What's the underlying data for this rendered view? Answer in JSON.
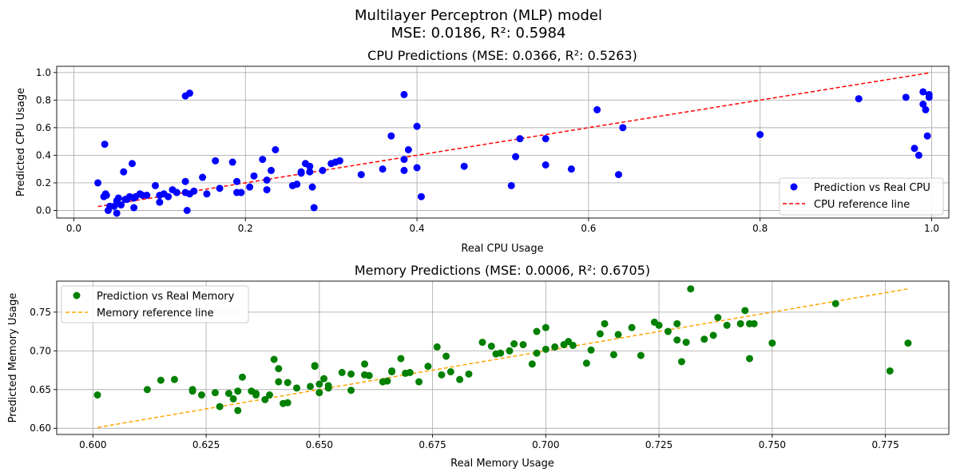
{
  "figure": {
    "suptitle_line1": "Multilayer Perceptron (MLP) model",
    "suptitle_line2": "MSE: 0.0186, R²: 0.5984"
  },
  "chart_data": [
    {
      "type": "scatter",
      "title": "CPU Predictions (MSE: 0.0366, R²: 0.5263)",
      "xlabel": "Real CPU Usage",
      "ylabel": "Predicted CPU Usage",
      "xlim": [
        -0.02,
        1.02
      ],
      "ylim": [
        -0.055,
        1.045
      ],
      "xticks": [
        0.0,
        0.2,
        0.4,
        0.6,
        0.8,
        1.0
      ],
      "xtick_labels": [
        "0.0",
        "0.2",
        "0.4",
        "0.6",
        "0.8",
        "1.0"
      ],
      "yticks": [
        0.0,
        0.2,
        0.4,
        0.6,
        0.8,
        1.0
      ],
      "ytick_labels": [
        "0.0",
        "0.2",
        "0.4",
        "0.6",
        "0.8",
        "1.0"
      ],
      "grid": true,
      "legend_position": "lower-right",
      "scatter_series": {
        "name": "Prediction vs Real CPU",
        "color": "#0000ff",
        "x": [
          0.028,
          0.035,
          0.036,
          0.037,
          0.04,
          0.042,
          0.047,
          0.05,
          0.052,
          0.055,
          0.058,
          0.062,
          0.065,
          0.068,
          0.07,
          0.072,
          0.077,
          0.085,
          0.095,
          0.1,
          0.105,
          0.11,
          0.115,
          0.13,
          0.132,
          0.135,
          0.14,
          0.15,
          0.155,
          0.165,
          0.17,
          0.185,
          0.19,
          0.195,
          0.205,
          0.21,
          0.22,
          0.225,
          0.23,
          0.235,
          0.255,
          0.26,
          0.265,
          0.27,
          0.275,
          0.28,
          0.29,
          0.3,
          0.305,
          0.31,
          0.335,
          0.36,
          0.37,
          0.385,
          0.39,
          0.4,
          0.405,
          0.455,
          0.51,
          0.52,
          0.55,
          0.58,
          0.61,
          0.635,
          0.64,
          0.8,
          0.915,
          0.97,
          0.98,
          0.985,
          0.99,
          0.993,
          0.995,
          0.997,
          0.997,
          0.038,
          0.05,
          0.06,
          0.07,
          0.08,
          0.1,
          0.12,
          0.13,
          0.13,
          0.135,
          0.19,
          0.225,
          0.265,
          0.275,
          0.278,
          0.385,
          0.385,
          0.4,
          0.515,
          0.55,
          0.99
        ],
        "y": [
          0.2,
          0.1,
          0.48,
          0.12,
          0.0,
          0.03,
          0.03,
          -0.02,
          0.09,
          0.04,
          0.28,
          0.08,
          0.1,
          0.34,
          0.02,
          0.1,
          0.12,
          0.11,
          0.18,
          0.06,
          0.12,
          0.1,
          0.15,
          0.21,
          0.0,
          0.12,
          0.14,
          0.24,
          0.12,
          0.36,
          0.16,
          0.35,
          0.21,
          0.13,
          0.17,
          0.25,
          0.37,
          0.15,
          0.29,
          0.44,
          0.18,
          0.19,
          0.27,
          0.34,
          0.32,
          0.02,
          0.29,
          0.34,
          0.35,
          0.36,
          0.26,
          0.3,
          0.54,
          0.84,
          0.44,
          0.61,
          0.1,
          0.32,
          0.18,
          0.52,
          0.52,
          0.3,
          0.73,
          0.26,
          0.6,
          0.55,
          0.81,
          0.82,
          0.45,
          0.4,
          0.86,
          0.73,
          0.54,
          0.84,
          0.82,
          0.11,
          0.07,
          0.08,
          0.09,
          0.11,
          0.11,
          0.13,
          0.83,
          0.13,
          0.85,
          0.13,
          0.22,
          0.28,
          0.28,
          0.17,
          0.37,
          0.29,
          0.31,
          0.39,
          0.33,
          0.77
        ]
      },
      "line_series": {
        "name": "CPU reference line",
        "color": "#ff0000",
        "x": [
          0.028,
          0.997
        ],
        "y": [
          0.028,
          0.997
        ]
      }
    },
    {
      "type": "scatter",
      "title": "Memory Predictions (MSE: 0.0006, R²: 0.6705)",
      "xlabel": "Real Memory Usage",
      "ylabel": "Predicted Memory Usage",
      "xlim": [
        0.592,
        0.789
      ],
      "ylim": [
        0.592,
        0.79
      ],
      "xticks": [
        0.6,
        0.625,
        0.65,
        0.675,
        0.7,
        0.725,
        0.75,
        0.775
      ],
      "xtick_labels": [
        "0.600",
        "0.625",
        "0.650",
        "0.675",
        "0.700",
        "0.725",
        "0.750",
        "0.775"
      ],
      "yticks": [
        0.6,
        0.65,
        0.7,
        0.75
      ],
      "ytick_labels": [
        "0.60",
        "0.65",
        "0.70",
        "0.75"
      ],
      "grid": true,
      "legend_position": "upper-left",
      "scatter_series": {
        "name": "Prediction vs Real Memory",
        "color": "#008000",
        "x": [
          0.601,
          0.612,
          0.615,
          0.618,
          0.622,
          0.624,
          0.627,
          0.628,
          0.63,
          0.631,
          0.632,
          0.633,
          0.635,
          0.636,
          0.638,
          0.64,
          0.641,
          0.642,
          0.643,
          0.645,
          0.648,
          0.649,
          0.65,
          0.651,
          0.652,
          0.655,
          0.657,
          0.66,
          0.661,
          0.664,
          0.665,
          0.666,
          0.668,
          0.67,
          0.672,
          0.674,
          0.676,
          0.678,
          0.679,
          0.681,
          0.683,
          0.686,
          0.688,
          0.689,
          0.69,
          0.692,
          0.695,
          0.697,
          0.698,
          0.698,
          0.7,
          0.702,
          0.704,
          0.706,
          0.709,
          0.71,
          0.712,
          0.713,
          0.716,
          0.719,
          0.721,
          0.724,
          0.727,
          0.729,
          0.73,
          0.732,
          0.735,
          0.737,
          0.738,
          0.74,
          0.743,
          0.744,
          0.745,
          0.746,
          0.75,
          0.764,
          0.776,
          0.78,
          0.622,
          0.632,
          0.636,
          0.639,
          0.641,
          0.643,
          0.649,
          0.65,
          0.652,
          0.657,
          0.66,
          0.666,
          0.669,
          0.677,
          0.693,
          0.7,
          0.705,
          0.715,
          0.725,
          0.729,
          0.731,
          0.745
        ],
        "y": [
          0.643,
          0.65,
          0.662,
          0.663,
          0.65,
          0.643,
          0.646,
          0.628,
          0.645,
          0.638,
          0.623,
          0.666,
          0.648,
          0.643,
          0.637,
          0.689,
          0.677,
          0.632,
          0.659,
          0.652,
          0.654,
          0.68,
          0.646,
          0.664,
          0.655,
          0.672,
          0.67,
          0.683,
          0.668,
          0.66,
          0.661,
          0.673,
          0.69,
          0.672,
          0.66,
          0.68,
          0.705,
          0.693,
          0.673,
          0.663,
          0.67,
          0.711,
          0.706,
          0.696,
          0.697,
          0.7,
          0.708,
          0.683,
          0.725,
          0.697,
          0.73,
          0.705,
          0.708,
          0.707,
          0.684,
          0.701,
          0.722,
          0.735,
          0.721,
          0.73,
          0.694,
          0.737,
          0.725,
          0.714,
          0.686,
          0.78,
          0.715,
          0.72,
          0.743,
          0.733,
          0.735,
          0.752,
          0.69,
          0.735,
          0.71,
          0.761,
          0.674,
          0.71,
          0.648,
          0.648,
          0.645,
          0.643,
          0.66,
          0.633,
          0.681,
          0.657,
          0.652,
          0.649,
          0.669,
          0.674,
          0.671,
          0.669,
          0.709,
          0.702,
          0.712,
          0.695,
          0.733,
          0.735,
          0.711,
          0.735
        ]
      },
      "line_series": {
        "name": "Memory reference line",
        "color": "#ffa500",
        "x": [
          0.601,
          0.78
        ],
        "y": [
          0.601,
          0.78
        ]
      }
    }
  ]
}
